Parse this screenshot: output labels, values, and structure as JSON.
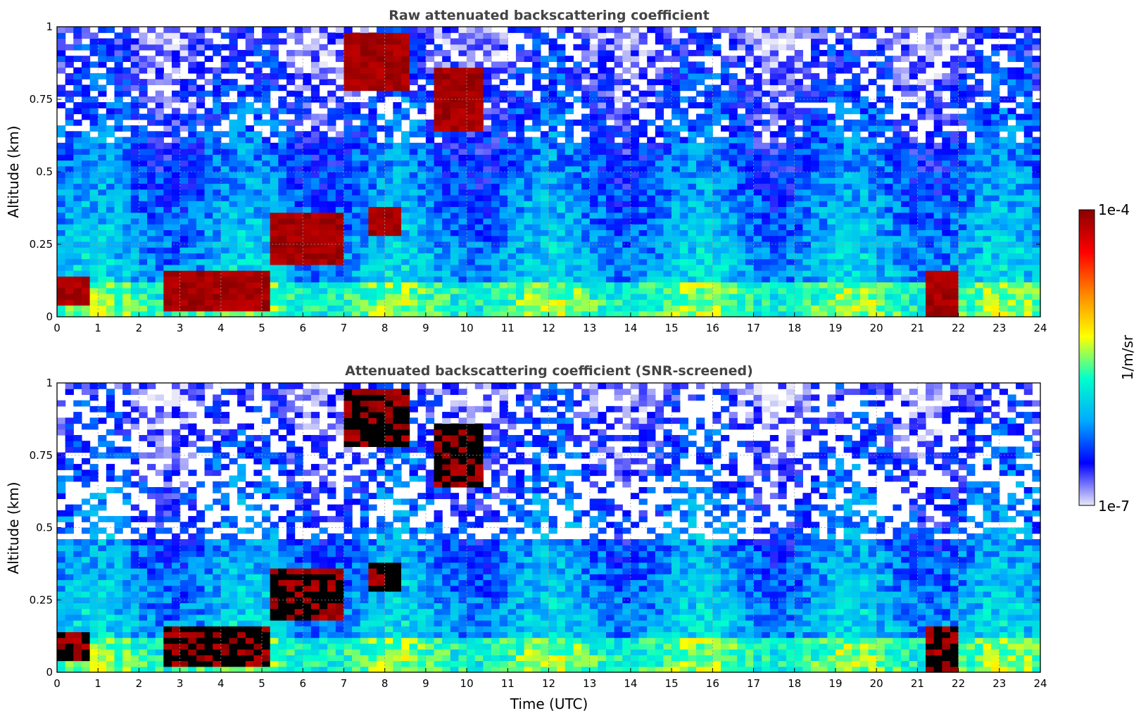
{
  "chart_data": [
    {
      "type": "heatmap",
      "title": "Raw attenuated backscattering coefficient",
      "xlabel": "",
      "ylabel": "Altitude (km)",
      "xlim": [
        0,
        24
      ],
      "ylim": [
        0,
        1
      ],
      "xticks": [
        "0",
        "1",
        "2",
        "3",
        "4",
        "5",
        "6",
        "7",
        "8",
        "9",
        "10",
        "11",
        "12",
        "13",
        "14",
        "15",
        "16",
        "17",
        "18",
        "19",
        "20",
        "21",
        "22",
        "23",
        "24"
      ],
      "yticks": [
        "0",
        "0.25",
        "0.5",
        "0.75",
        "1"
      ],
      "grid": true,
      "cloud_layers": [
        {
          "t0": 0.0,
          "t1": 0.7,
          "z0": 0.04,
          "z1": 0.14
        },
        {
          "t0": 2.7,
          "t1": 5.2,
          "z0": 0.02,
          "z1": 0.16
        },
        {
          "t0": 5.2,
          "t1": 7.0,
          "z0": 0.18,
          "z1": 0.36
        },
        {
          "t0": 7.0,
          "t1": 8.5,
          "z0": 0.78,
          "z1": 0.98
        },
        {
          "t0": 7.6,
          "t1": 8.4,
          "z0": 0.28,
          "z1": 0.38
        },
        {
          "t0": 9.2,
          "t1": 10.3,
          "z0": 0.65,
          "z1": 0.85
        },
        {
          "t0": 21.2,
          "t1": 22.0,
          "z0": 0.0,
          "z1": 0.15
        }
      ]
    },
    {
      "type": "heatmap",
      "title": "Attenuated backscattering coefficient (SNR-screened)",
      "xlabel": "Time (UTC)",
      "ylabel": "Altitude (km)",
      "xlim": [
        0,
        24
      ],
      "ylim": [
        0,
        1
      ],
      "xticks": [
        "0",
        "1",
        "2",
        "3",
        "4",
        "5",
        "6",
        "7",
        "8",
        "9",
        "10",
        "11",
        "12",
        "13",
        "14",
        "15",
        "16",
        "17",
        "18",
        "19",
        "20",
        "21",
        "22",
        "23",
        "24"
      ],
      "yticks": [
        "0",
        "0.25",
        "0.5",
        "0.75",
        "1"
      ],
      "grid": true
    }
  ],
  "colorbar": {
    "label": "1/m/sr",
    "max_label": "1e-4",
    "min_label": "1e-7",
    "colormap": [
      "#e8e8f8",
      "#0000ff",
      "#00aaff",
      "#00ffcc",
      "#ffff00",
      "#ff8800",
      "#ff0000",
      "#880000"
    ]
  }
}
